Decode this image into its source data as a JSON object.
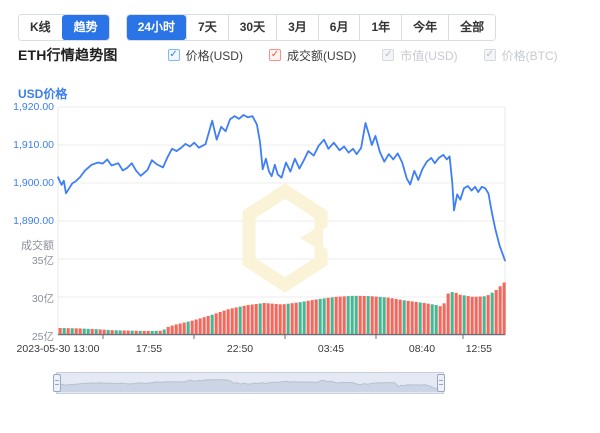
{
  "topbar": {
    "active_color": "#2B74E8",
    "chart_type_tabs": [
      {
        "name": "kline",
        "label": "K线",
        "active": false
      },
      {
        "name": "trend",
        "label": "趋势",
        "active": true
      }
    ],
    "range_tabs": [
      {
        "name": "24h",
        "label": "24小时",
        "active": true
      },
      {
        "name": "7d",
        "label": "7天",
        "active": false
      },
      {
        "name": "30d",
        "label": "30天",
        "active": false
      },
      {
        "name": "3m",
        "label": "3月",
        "active": false
      },
      {
        "name": "6m",
        "label": "6月",
        "active": false
      },
      {
        "name": "1y",
        "label": "1年",
        "active": false
      },
      {
        "name": "ytd",
        "label": "今年",
        "active": false
      },
      {
        "name": "all",
        "label": "全部",
        "active": false
      }
    ]
  },
  "header": {
    "title": "ETH行情趋势图",
    "series_toggles": [
      {
        "name": "price-usd",
        "label": "价格(USD)",
        "checked": true,
        "enabled": true,
        "check_color": "#3D7FE8",
        "border_color": "#85B6F5",
        "fill": "#F0F7FF"
      },
      {
        "name": "volume-usd",
        "label": "成交额(USD)",
        "checked": true,
        "enabled": true,
        "check_color": "#F2574A",
        "border_color": "#F5938B",
        "fill": "#FFF3F2"
      },
      {
        "name": "marketcap-usd",
        "label": "市值(USD)",
        "checked": true,
        "enabled": false,
        "check_color": "#B9BEC7",
        "border_color": "#D6DAE0",
        "fill": "#F3F5F8"
      },
      {
        "name": "price-btc",
        "label": "价格(BTC)",
        "checked": true,
        "enabled": false,
        "check_color": "#B9BEC7",
        "border_color": "#D6DAE0",
        "fill": "#F3F5F8"
      }
    ]
  },
  "chart_data": {
    "type": "line+bar",
    "title": "ETH行情趋势图",
    "date": "2023-05-30",
    "grid": {
      "line_color": "#ECECEC",
      "border_color": "#E8E8E8",
      "axis_color": "#6E7079"
    },
    "price_axis": {
      "label": "USD价格",
      "tick_labels": [
        "1,920.00",
        "1,910.00",
        "1,900.00",
        "1,890.00"
      ],
      "tick_values": [
        1920,
        1910,
        1900,
        1890
      ],
      "color": "#3D7FE8"
    },
    "volume_axis": {
      "label": "成交额",
      "tick_labels": [
        "35亿",
        "30亿",
        "25亿"
      ],
      "tick_values": [
        35,
        30,
        25
      ],
      "unit": "亿"
    },
    "x_axis": {
      "tick_labels": [
        "2023-05-30 13:00",
        "17:55",
        "22:50",
        "03:45",
        "08:40",
        "12:55"
      ]
    },
    "price_series": {
      "name": "价格(USD)",
      "color": "#3E7EF7",
      "range_usd": [
        1879.6,
        1917.9
      ],
      "points": [
        [
          0.0,
          1901.5
        ],
        [
          0.008,
          1899.5
        ],
        [
          0.013,
          1900.6
        ],
        [
          0.018,
          1897.3
        ],
        [
          0.025,
          1898.6
        ],
        [
          0.032,
          1899.9
        ],
        [
          0.04,
          1900.5
        ],
        [
          0.05,
          1901.6
        ],
        [
          0.06,
          1903.2
        ],
        [
          0.075,
          1904.8
        ],
        [
          0.09,
          1905.4
        ],
        [
          0.1,
          1905.1
        ],
        [
          0.11,
          1906.2
        ],
        [
          0.12,
          1904.6
        ],
        [
          0.135,
          1905.2
        ],
        [
          0.145,
          1903.3
        ],
        [
          0.155,
          1904.0
        ],
        [
          0.165,
          1905.2
        ],
        [
          0.175,
          1903.2
        ],
        [
          0.185,
          1901.9
        ],
        [
          0.2,
          1903.4
        ],
        [
          0.21,
          1906.0
        ],
        [
          0.22,
          1905.0
        ],
        [
          0.235,
          1904.1
        ],
        [
          0.245,
          1906.8
        ],
        [
          0.255,
          1909.0
        ],
        [
          0.265,
          1908.4
        ],
        [
          0.275,
          1909.2
        ],
        [
          0.285,
          1910.3
        ],
        [
          0.295,
          1909.6
        ],
        [
          0.305,
          1910.6
        ],
        [
          0.315,
          1909.3
        ],
        [
          0.33,
          1910.2
        ],
        [
          0.345,
          1916.4
        ],
        [
          0.355,
          1911.4
        ],
        [
          0.365,
          1914.8
        ],
        [
          0.375,
          1913.6
        ],
        [
          0.385,
          1916.8
        ],
        [
          0.395,
          1917.6
        ],
        [
          0.405,
          1916.9
        ],
        [
          0.415,
          1917.9
        ],
        [
          0.425,
          1917.3
        ],
        [
          0.435,
          1917.6
        ],
        [
          0.445,
          1915.4
        ],
        [
          0.452,
          1910.8
        ],
        [
          0.458,
          1903.6
        ],
        [
          0.465,
          1906.4
        ],
        [
          0.472,
          1903.0
        ],
        [
          0.478,
          1901.8
        ],
        [
          0.485,
          1904.8
        ],
        [
          0.492,
          1902.2
        ],
        [
          0.5,
          1901.4
        ],
        [
          0.51,
          1905.4
        ],
        [
          0.52,
          1903.0
        ],
        [
          0.53,
          1906.4
        ],
        [
          0.54,
          1903.8
        ],
        [
          0.55,
          1906.0
        ],
        [
          0.56,
          1908.4
        ],
        [
          0.572,
          1907.2
        ],
        [
          0.583,
          1909.8
        ],
        [
          0.595,
          1911.4
        ],
        [
          0.605,
          1909.0
        ],
        [
          0.617,
          1910.6
        ],
        [
          0.63,
          1908.6
        ],
        [
          0.64,
          1909.6
        ],
        [
          0.65,
          1908.0
        ],
        [
          0.66,
          1909.0
        ],
        [
          0.668,
          1907.6
        ],
        [
          0.678,
          1909.2
        ],
        [
          0.688,
          1915.8
        ],
        [
          0.695,
          1913.0
        ],
        [
          0.702,
          1910.0
        ],
        [
          0.71,
          1912.4
        ],
        [
          0.72,
          1908.2
        ],
        [
          0.73,
          1905.6
        ],
        [
          0.74,
          1907.6
        ],
        [
          0.75,
          1906.2
        ],
        [
          0.76,
          1907.8
        ],
        [
          0.77,
          1905.4
        ],
        [
          0.78,
          1901.2
        ],
        [
          0.788,
          1899.6
        ],
        [
          0.797,
          1903.2
        ],
        [
          0.806,
          1900.8
        ],
        [
          0.815,
          1903.6
        ],
        [
          0.825,
          1905.6
        ],
        [
          0.835,
          1906.6
        ],
        [
          0.843,
          1905.2
        ],
        [
          0.852,
          1906.6
        ],
        [
          0.862,
          1907.4
        ],
        [
          0.87,
          1906.2
        ],
        [
          0.876,
          1907.0
        ],
        [
          0.882,
          1900.0
        ],
        [
          0.886,
          1892.8
        ],
        [
          0.893,
          1897.0
        ],
        [
          0.9,
          1895.6
        ],
        [
          0.908,
          1898.6
        ],
        [
          0.917,
          1899.2
        ],
        [
          0.925,
          1898.0
        ],
        [
          0.933,
          1899.0
        ],
        [
          0.94,
          1897.6
        ],
        [
          0.948,
          1899.0
        ],
        [
          0.956,
          1898.6
        ],
        [
          0.963,
          1897.2
        ],
        [
          0.97,
          1892.6
        ],
        [
          0.978,
          1888.0
        ],
        [
          0.988,
          1883.5
        ],
        [
          1.0,
          1879.6
        ]
      ]
    },
    "volume_series": {
      "name": "成交额(USD)",
      "up_color": "#4AB593",
      "down_color": "#F2685C",
      "bar_count": 112,
      "profile_yi": [
        [
          0,
          25.9
        ],
        [
          0.04,
          25.85
        ],
        [
          0.08,
          25.75
        ],
        [
          0.12,
          25.6
        ],
        [
          0.16,
          25.55
        ],
        [
          0.2,
          25.5
        ],
        [
          0.23,
          25.55
        ],
        [
          0.245,
          26.1
        ],
        [
          0.26,
          26.35
        ],
        [
          0.3,
          26.9
        ],
        [
          0.34,
          27.6
        ],
        [
          0.38,
          28.4
        ],
        [
          0.42,
          28.9
        ],
        [
          0.46,
          29.2
        ],
        [
          0.5,
          29.0
        ],
        [
          0.54,
          29.3
        ],
        [
          0.58,
          29.7
        ],
        [
          0.62,
          30.0
        ],
        [
          0.66,
          30.15
        ],
        [
          0.7,
          30.1
        ],
        [
          0.74,
          29.9
        ],
        [
          0.78,
          29.5
        ],
        [
          0.82,
          29.2
        ],
        [
          0.85,
          28.9
        ],
        [
          0.862,
          28.65
        ],
        [
          0.872,
          30.4
        ],
        [
          0.886,
          30.7
        ],
        [
          0.9,
          30.3
        ],
        [
          0.93,
          30.0
        ],
        [
          0.96,
          30.1
        ],
        [
          0.98,
          30.8
        ],
        [
          1,
          31.9
        ]
      ],
      "bar_directions": "rgrgrrggrgrrgrggrrgrgrrggrgrrrrrgrrrrrgrrrrrrgrrrrgrrrrrrgrrggrrrggrgrrrgggrrgrrggrrrrgrrrgrrggrrrgrrgrrrrgrgrrr"
    },
    "watermark": {
      "icon": "brand-hexagon-b-logo",
      "color": "#FAF3D8"
    }
  },
  "navigator": {
    "fill": "#E4E9F3",
    "silhouette": "#CBD5E3",
    "line": "#B6C1D4",
    "border": "#C7CFDE",
    "handle_border": "#98A7C0"
  }
}
